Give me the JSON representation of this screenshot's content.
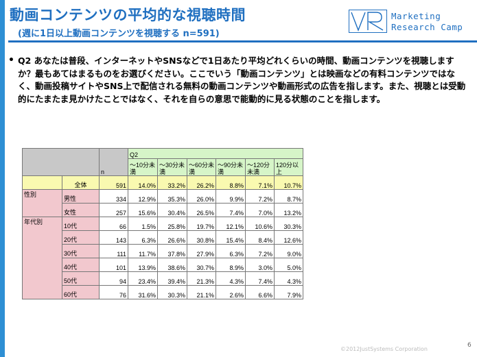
{
  "page": {
    "title": "動画コンテンツの平均的な視聴時間",
    "subtitle": "(週に1日以上動画コンテンツを視聴する n=591)",
    "logo_line1": "Marketing",
    "logo_line2": "Research Camp",
    "bullet": "•",
    "question": "Q2 あなたは普段、インターネットやSNSなどで1日あたり平均どれくらいの時間、動画コンテンツを視聴しますか？最もあてはまるものをお選びください。ここでいう「動画コンテンツ」とは映画などの有料コンテンツではなく、動画投稿サイトやSNS上で配信される無料の動画コンテンツや動画形式の広告を指します。また、視聴とは受動的にたまたま見かけたことではなく、それを自らの意思で能動的に見る状態のことを指します。",
    "footer": "©2012JustSystems Corporation",
    "page_number": "6"
  },
  "table": {
    "q_label": "Q2",
    "n_label": "n",
    "columns": [
      "～10分未満",
      "～30分未満",
      "～60分未満",
      "～90分未満",
      "～120分未満",
      "120分以上"
    ],
    "total": {
      "label": "全体",
      "n": "591",
      "values": [
        "14.0%",
        "33.2%",
        "26.2%",
        "8.8%",
        "7.1%",
        "10.7%"
      ]
    },
    "groups": [
      {
        "label": "性別",
        "rows": [
          {
            "label": "男性",
            "n": "334",
            "values": [
              "12.9%",
              "35.3%",
              "26.0%",
              "9.9%",
              "7.2%",
              "8.7%"
            ]
          },
          {
            "label": "女性",
            "n": "257",
            "values": [
              "15.6%",
              "30.4%",
              "26.5%",
              "7.4%",
              "7.0%",
              "13.2%"
            ]
          }
        ]
      },
      {
        "label": "年代別",
        "rows": [
          {
            "label": "10代",
            "n": "66",
            "values": [
              "1.5%",
              "25.8%",
              "19.7%",
              "12.1%",
              "10.6%",
              "30.3%"
            ]
          },
          {
            "label": "20代",
            "n": "143",
            "values": [
              "6.3%",
              "26.6%",
              "30.8%",
              "15.4%",
              "8.4%",
              "12.6%"
            ]
          },
          {
            "label": "30代",
            "n": "111",
            "values": [
              "11.7%",
              "37.8%",
              "27.9%",
              "6.3%",
              "7.2%",
              "9.0%"
            ]
          },
          {
            "label": "40代",
            "n": "101",
            "values": [
              "13.9%",
              "38.6%",
              "30.7%",
              "8.9%",
              "3.0%",
              "5.0%"
            ]
          },
          {
            "label": "50代",
            "n": "94",
            "values": [
              "23.4%",
              "39.4%",
              "21.3%",
              "4.3%",
              "7.4%",
              "4.3%"
            ]
          },
          {
            "label": "60代",
            "n": "76",
            "values": [
              "31.6%",
              "30.3%",
              "21.1%",
              "2.6%",
              "6.6%",
              "7.9%"
            ]
          }
        ]
      }
    ]
  }
}
